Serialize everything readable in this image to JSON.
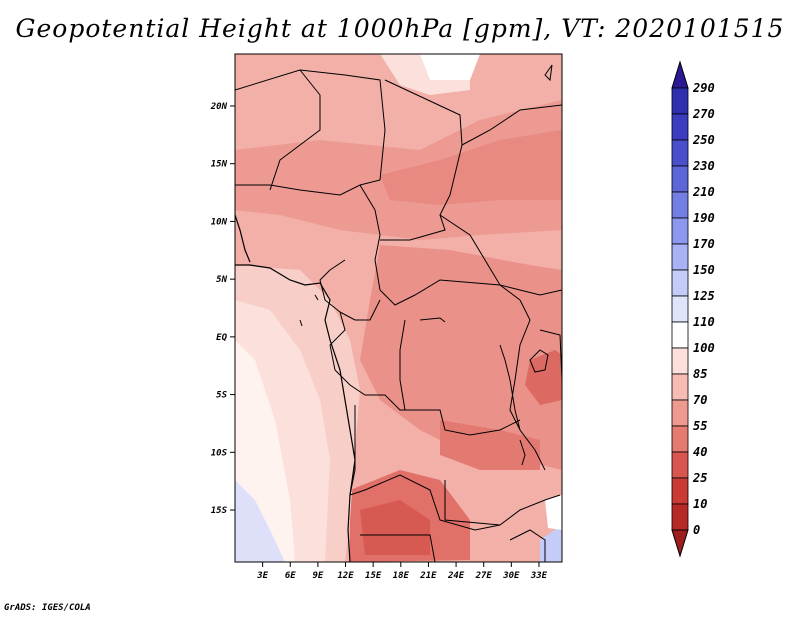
{
  "title": "Geopotential Height at 1000hPa [gpm], VT: 2020101515",
  "credit": "GrADS: IGES/COLA",
  "map": {
    "lon_range": [
      0,
      35.5
    ],
    "lat_range": [
      -19.5,
      24.5
    ],
    "lon_ticks": [
      "3E",
      "6E",
      "9E",
      "12E",
      "15E",
      "18E",
      "21E",
      "24E",
      "27E",
      "30E",
      "33E"
    ],
    "lat_ticks": [
      "20N",
      "15N",
      "10N",
      "5N",
      "EQ",
      "5S",
      "10S",
      "15S"
    ]
  },
  "colorbar": {
    "labels": [
      "290",
      "270",
      "250",
      "230",
      "210",
      "190",
      "170",
      "150",
      "125",
      "110",
      "100",
      "85",
      "70",
      "55",
      "40",
      "25",
      "10",
      "0"
    ],
    "colors": [
      "#2a1a96",
      "#2f2fb0",
      "#3b3cc0",
      "#4a50cc",
      "#5c66d8",
      "#737fe3",
      "#8c98ee",
      "#a8b2f4",
      "#c6ccf8",
      "#e0e4fb",
      "#ffffff",
      "#fde0dc",
      "#f7bcb4",
      "#ef9a90",
      "#e57a70",
      "#d95650",
      "#cc3a36",
      "#b82a26",
      "#9e1e1e"
    ]
  }
}
